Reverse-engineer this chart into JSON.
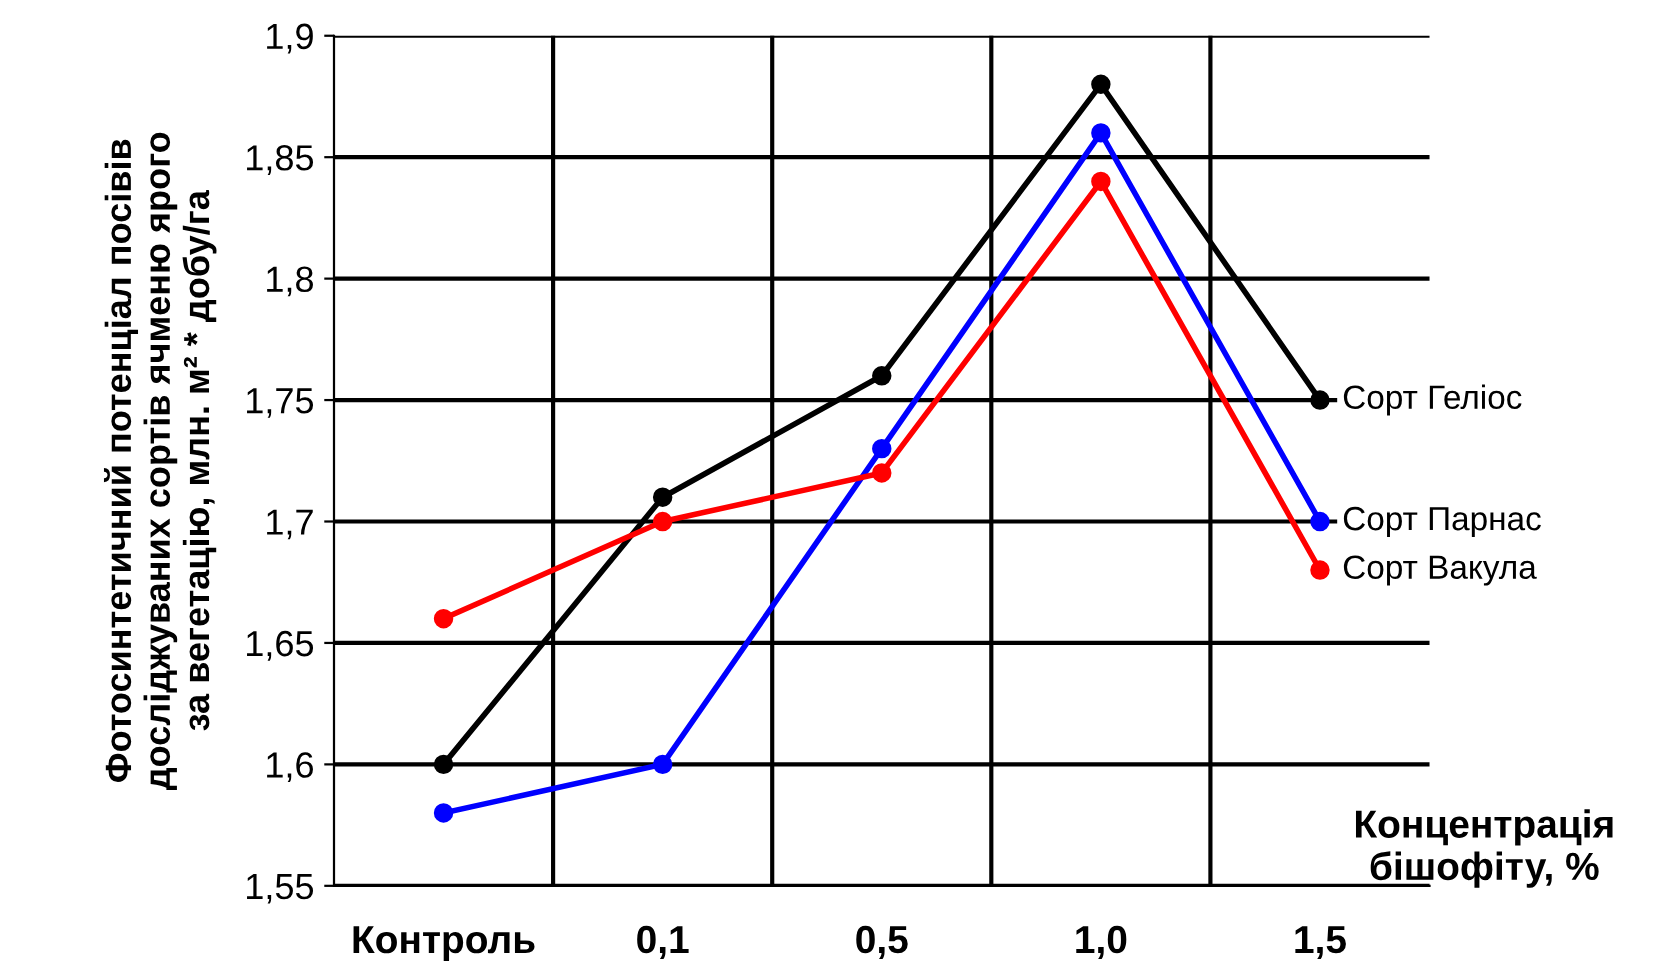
{
  "chart_data": {
    "type": "line",
    "ylabel": "Фотосинтетичний потенціал посівів\nдосліджуваних сортів ячменю ярого\nза вегетацію, млн. м² * добу/га",
    "xlabel": "Концентрація\nбішофіту, %",
    "categories": [
      "Контроль",
      "0,1",
      "0,5",
      "1,0",
      "1,5"
    ],
    "series": [
      {
        "name": "Сорт Геліос",
        "color": "#000000",
        "values": [
          1.6,
          1.71,
          1.76,
          1.88,
          1.75
        ]
      },
      {
        "name": "Сорт Парнас",
        "color": "#0000ff",
        "values": [
          1.58,
          1.6,
          1.73,
          1.86,
          1.7
        ]
      },
      {
        "name": "Сорт Вакула",
        "color": "#ff0000",
        "values": [
          1.66,
          1.7,
          1.72,
          1.84,
          1.68
        ]
      }
    ],
    "ylim": [
      1.55,
      1.9
    ],
    "yticks": [
      {
        "value": 1.55,
        "label": "1,55"
      },
      {
        "value": 1.6,
        "label": "1,6"
      },
      {
        "value": 1.65,
        "label": "1,65"
      },
      {
        "value": 1.7,
        "label": "1,7"
      },
      {
        "value": 1.75,
        "label": "1,75"
      },
      {
        "value": 1.8,
        "label": "1,8"
      },
      {
        "value": 1.85,
        "label": "1,85"
      },
      {
        "value": 1.9,
        "label": "1,9"
      }
    ],
    "grid": true,
    "marker": "circle",
    "line_style": "solid",
    "legend": "right"
  }
}
